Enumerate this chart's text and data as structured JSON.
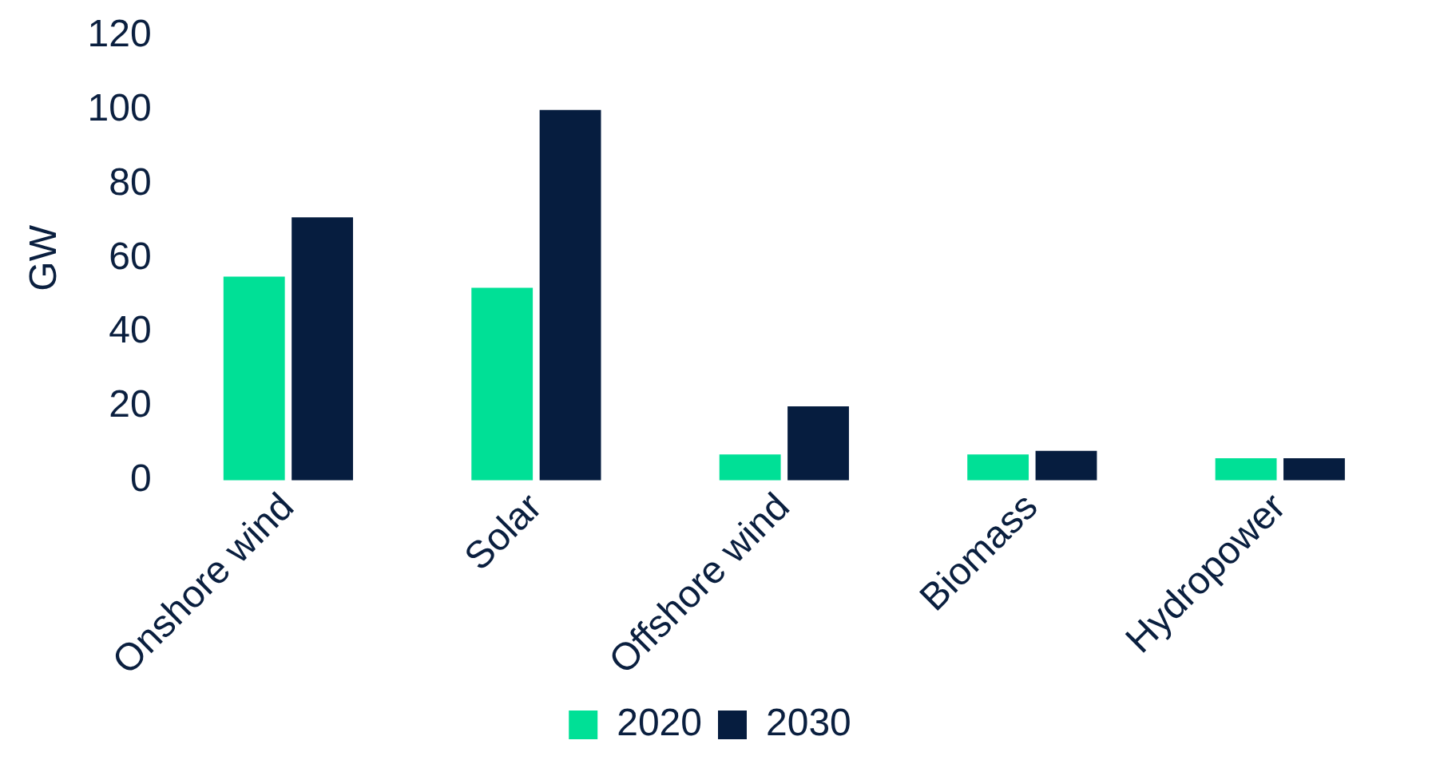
{
  "chart_data": {
    "type": "bar",
    "ylabel": "GW",
    "categories": [
      "Onshore wind",
      "Solar",
      "Offshore wind",
      "Biomass",
      "Hydropower"
    ],
    "series": [
      {
        "name": "2020",
        "color": "#00e096",
        "values": [
          55,
          52,
          7,
          7,
          6
        ]
      },
      {
        "name": "2030",
        "color": "#061d3f",
        "values": [
          71,
          100,
          20,
          8,
          6
        ]
      }
    ],
    "ylim": [
      0,
      120
    ],
    "yticks": [
      0,
      20,
      40,
      60,
      80,
      100,
      120
    ],
    "grid": false,
    "legend": "bottom"
  }
}
